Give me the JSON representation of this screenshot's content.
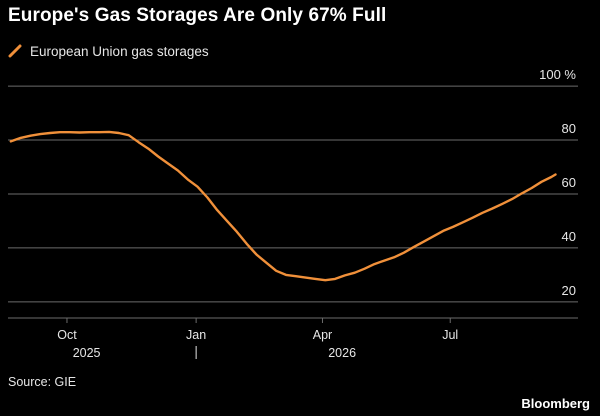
{
  "title": "Europe's Gas Storages Are Only 67% Full",
  "source": "Source: GIE",
  "brand": "Bloomberg",
  "colors": {
    "background": "#000000",
    "series": "#f0903a",
    "grid": "#6b6b6b",
    "text": "#e6e6e6"
  },
  "chart_data": {
    "type": "line",
    "title": "Europe's Gas Storages Are Only 67% Full",
    "xlabel": "",
    "ylabel": "",
    "y_ticks": [
      {
        "value": 20,
        "label": "20"
      },
      {
        "value": 40,
        "label": "40"
      },
      {
        "value": 60,
        "label": "60"
      },
      {
        "value": 80,
        "label": "80"
      },
      {
        "value": 100,
        "label": "100 %"
      }
    ],
    "ylim": [
      14,
      103
    ],
    "xlim": [
      "2025-08-20",
      "2026-09-30"
    ],
    "x_ticks": [
      {
        "date": "2025-10-01",
        "label": "Oct"
      },
      {
        "date": "2026-01-01",
        "label": "Jan"
      },
      {
        "date": "2026-04-01",
        "label": "Apr"
      },
      {
        "date": "2026-07-01",
        "label": "Jul"
      }
    ],
    "year_labels": [
      {
        "date": "2025-10-15",
        "label": "2025"
      },
      {
        "date": "2026-04-15",
        "label": "2026"
      }
    ],
    "year_divider": "2026-01-01",
    "grid": true,
    "y_axis_position": "right",
    "legend_position": "top-left",
    "series": [
      {
        "name": "European Union gas storages",
        "color": "#f0903a",
        "points": [
          [
            "2025-08-22",
            79.5
          ],
          [
            "2025-08-29",
            80.8
          ],
          [
            "2025-09-05",
            81.6
          ],
          [
            "2025-09-12",
            82.2
          ],
          [
            "2025-09-19",
            82.6
          ],
          [
            "2025-09-26",
            82.9
          ],
          [
            "2025-10-03",
            82.9
          ],
          [
            "2025-10-10",
            82.8
          ],
          [
            "2025-10-17",
            82.9
          ],
          [
            "2025-10-24",
            82.9
          ],
          [
            "2025-10-31",
            83.0
          ],
          [
            "2025-11-07",
            82.6
          ],
          [
            "2025-11-14",
            81.8
          ],
          [
            "2025-11-21",
            79.2
          ],
          [
            "2025-11-28",
            76.8
          ],
          [
            "2025-12-05",
            73.9
          ],
          [
            "2025-12-12",
            71.3
          ],
          [
            "2025-12-19",
            68.7
          ],
          [
            "2025-12-26",
            65.4
          ],
          [
            "2026-01-02",
            62.7
          ],
          [
            "2026-01-09",
            58.7
          ],
          [
            "2026-01-16",
            54.0
          ],
          [
            "2026-01-23",
            50.0
          ],
          [
            "2026-01-30",
            46.0
          ],
          [
            "2026-02-06",
            41.5
          ],
          [
            "2026-02-13",
            37.5
          ],
          [
            "2026-02-20",
            34.5
          ],
          [
            "2026-02-27",
            31.5
          ],
          [
            "2026-03-06",
            30.0
          ],
          [
            "2026-03-13",
            29.5
          ],
          [
            "2026-03-20",
            29.0
          ],
          [
            "2026-03-27",
            28.5
          ],
          [
            "2026-04-03",
            28.0
          ],
          [
            "2026-04-10",
            28.5
          ],
          [
            "2026-04-17",
            29.8
          ],
          [
            "2026-04-24",
            30.8
          ],
          [
            "2026-05-01",
            32.3
          ],
          [
            "2026-05-08",
            34.0
          ],
          [
            "2026-05-15",
            35.3
          ],
          [
            "2026-05-22",
            36.5
          ],
          [
            "2026-05-29",
            38.2
          ],
          [
            "2026-06-05",
            40.3
          ],
          [
            "2026-06-12",
            42.3
          ],
          [
            "2026-06-19",
            44.3
          ],
          [
            "2026-06-26",
            46.3
          ],
          [
            "2026-07-03",
            47.8
          ],
          [
            "2026-07-10",
            49.5
          ],
          [
            "2026-07-17",
            51.2
          ],
          [
            "2026-07-24",
            53.0
          ],
          [
            "2026-07-31",
            54.6
          ],
          [
            "2026-08-07",
            56.3
          ],
          [
            "2026-08-14",
            58.1
          ],
          [
            "2026-08-21",
            60.2
          ],
          [
            "2026-08-28",
            62.2
          ],
          [
            "2026-09-04",
            64.5
          ],
          [
            "2026-09-11",
            66.3
          ],
          [
            "2026-09-14",
            67.2
          ]
        ]
      }
    ]
  }
}
